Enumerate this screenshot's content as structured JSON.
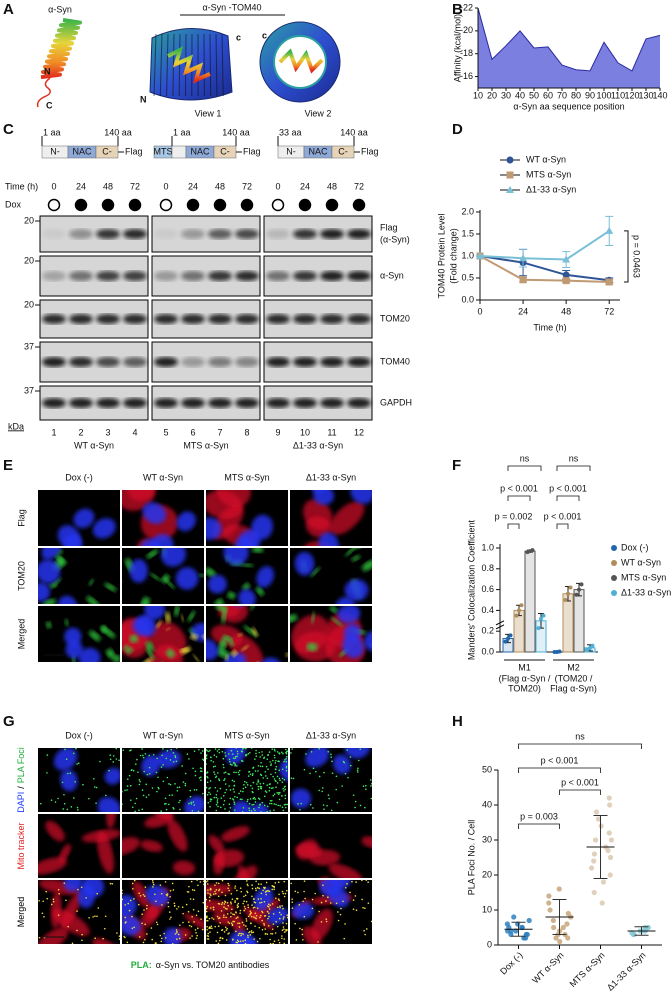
{
  "panel_letters": [
    "A",
    "B",
    "C",
    "D",
    "E",
    "F",
    "G",
    "H"
  ],
  "panel_a": {
    "monomer_title": "α-Syn",
    "complex_title": "α-Syn -TOM40",
    "monomer_n": "N",
    "monomer_c": "C",
    "view1_c": "c",
    "view1_n": "N",
    "view1": "View 1",
    "view2_c": "c",
    "view2": "View 2"
  },
  "panel_c": {
    "constructs": [
      {
        "start": "1 aa",
        "end": "140 aa",
        "domains": [
          "N-",
          "NAC",
          "C-"
        ],
        "tag": "Flag"
      },
      {
        "start": "1 aa",
        "end": "140 aa",
        "domains": [
          "MTS",
          "NAC",
          "C-"
        ],
        "tag": "Flag"
      },
      {
        "start": "33 aa",
        "end": "140 aa",
        "domains": [
          "N-",
          "NAC",
          "C-"
        ],
        "tag": "Flag"
      }
    ],
    "time_label": "Time (h)",
    "times": [
      "0",
      "24",
      "48",
      "72"
    ],
    "dox_label": "Dox",
    "dox": [
      false,
      true,
      true,
      true
    ],
    "blots": [
      {
        "label": "Flag",
        "sublabel": "(α-Syn)",
        "mw": "20"
      },
      {
        "label": "α-Syn",
        "mw": "20"
      },
      {
        "label": "TOM20",
        "mw": "20"
      },
      {
        "label": "TOM40",
        "mw": "37"
      },
      {
        "label": "GAPDH",
        "mw": "37"
      }
    ],
    "mw_unit": "kDa",
    "lanes": [
      "1",
      "2",
      "3",
      "4",
      "5",
      "6",
      "7",
      "8",
      "9",
      "10",
      "11",
      "12"
    ],
    "groups": [
      "WT α-Syn",
      "MTS α-Syn",
      "Δ1-33 α-Syn"
    ]
  },
  "panel_e": {
    "columns": [
      "Dox (-)",
      "WT α-Syn",
      "MTS α-Syn",
      "Δ1-33 α-Syn"
    ],
    "rows": [
      {
        "label": "Flag",
        "color": "#e02020"
      },
      {
        "label": "TOM20",
        "color": "#1fae3a"
      },
      {
        "label": "Merged",
        "color": "#000000"
      }
    ]
  },
  "panel_g": {
    "columns": [
      "Dox (-)",
      "WT α-Syn",
      "MTS α-Syn",
      "Δ1-33 α-Syn"
    ],
    "rows": [
      {
        "parts": [
          "DAPI",
          "/",
          "PLA Foci"
        ],
        "colors": [
          "#1a3cff",
          "#000000",
          "#1fae3a"
        ]
      },
      {
        "parts": [
          "Mito tracker"
        ],
        "colors": [
          "#e02020"
        ]
      },
      {
        "parts": [
          "Merged"
        ],
        "colors": [
          "#000000"
        ]
      }
    ],
    "footer_key": "PLA:",
    "footer_key_color": "#1fae3a",
    "footer_text": "α-Syn vs. TOM20 antibodies"
  },
  "chart_data": [
    {
      "type": "area",
      "y_label": "Affinity (kcal/mol)",
      "x_label": "α-Syn aa sequence position",
      "x": [
        10,
        20,
        30,
        40,
        50,
        60,
        70,
        80,
        90,
        100,
        110,
        120,
        130,
        140
      ],
      "values": [
        -22,
        -17.5,
        -18.7,
        -20,
        -18.5,
        -18.6,
        -17,
        -16.6,
        -16.5,
        -19,
        -17.2,
        -16.5,
        -19.3,
        -19.6
      ],
      "color": "#7b7fe0",
      "line_color": "#2a2aa0",
      "xlim": [
        10,
        140
      ],
      "xticks": [
        10,
        20,
        30,
        40,
        50,
        60,
        70,
        80,
        90,
        100,
        110,
        120,
        130,
        140
      ],
      "ylim": [
        -15,
        -22
      ],
      "yticks": [
        -22,
        -20,
        -18,
        -16
      ]
    },
    {
      "type": "line",
      "x_label": "Time (h)",
      "y_label": [
        "TOM40 Protein Level",
        "(Fold change)"
      ],
      "x": [
        0,
        24,
        48,
        72
      ],
      "series": [
        {
          "name": "WT α-Syn",
          "color": "#2f5597",
          "marker": "circle",
          "values": [
            1.0,
            0.85,
            0.57,
            0.45
          ],
          "errors": [
            0,
            0.3,
            0.1,
            0.05
          ]
        },
        {
          "name": "MTS α-Syn",
          "color": "#c09a72",
          "marker": "square",
          "values": [
            1.0,
            0.46,
            0.44,
            0.41
          ],
          "errors": [
            0,
            0.05,
            0.04,
            0.05
          ]
        },
        {
          "name": "Δ1-33 α-Syn",
          "color": "#79bfd6",
          "marker": "triangle",
          "values": [
            1.0,
            0.95,
            0.92,
            1.57
          ],
          "errors": [
            0,
            0.2,
            0.18,
            0.33
          ]
        }
      ],
      "xlim": [
        0,
        78
      ],
      "xticks": [
        0,
        24,
        48,
        72
      ],
      "ylim": [
        0,
        2
      ],
      "yticks": [
        {
          "value": 0,
          "label": "0.0"
        },
        0.5,
        {
          "value": 1,
          "label": "1.0"
        },
        1.5,
        {
          "value": 2,
          "label": "2.0"
        }
      ],
      "annotation": "p = 0.0463"
    },
    {
      "type": "bar",
      "y_label": "Manders' Colocalization Coefficient",
      "categories": [
        "M1",
        "M2"
      ],
      "category_notes": [
        [
          "(Flag α-Syn /",
          "TOM20)"
        ],
        [
          "(TOM20 /",
          "Flag α-Syn)"
        ]
      ],
      "series": [
        {
          "name": "Dox (-)",
          "color": "#2166ac",
          "bar_color": "#dbe6f3",
          "values": [
            0.13,
            0.0
          ],
          "errors": [
            0.04,
            0.005
          ],
          "points": [
            [
              0.1,
              0.13,
              0.16
            ],
            [
              0,
              0,
              0.005
            ]
          ]
        },
        {
          "name": "WT α-Syn",
          "color": "#b08c5a",
          "bar_color": "#eadfcf",
          "values": [
            0.4,
            0.56
          ],
          "errors": [
            0.05,
            0.07
          ],
          "points": [
            [
              0.35,
              0.4,
              0.45
            ],
            [
              0.5,
              0.56,
              0.62
            ]
          ]
        },
        {
          "name": "MTS α-Syn",
          "color": "#555555",
          "bar_color": "#e4e4e4",
          "values": [
            0.97,
            0.6
          ],
          "errors": [
            0.01,
            0.06
          ],
          "points": [
            [
              0.96,
              0.97,
              0.98
            ],
            [
              0.55,
              0.6,
              0.65
            ]
          ]
        },
        {
          "name": "Δ1-33 α-Syn",
          "color": "#4fb0d4",
          "bar_color": "#dff0f6",
          "values": [
            0.3,
            0.04
          ],
          "errors": [
            0.07,
            0.03
          ],
          "points": [
            [
              0.23,
              0.32,
              0.35
            ],
            [
              0.02,
              0.04,
              0.06
            ]
          ]
        }
      ],
      "ylim": [
        0,
        1
      ],
      "yticks": [
        {
          "value": 0,
          "label": "0.0"
        },
        0.2,
        0.4,
        0.6,
        0.8,
        {
          "value": 1,
          "label": "1.0"
        }
      ],
      "annotations": [
        "ns",
        "p < 0.001",
        "p = 0.002",
        "ns",
        "p < 0.001",
        "p < 0.001"
      ]
    },
    {
      "type": "strip",
      "y_label": "PLA Foci No. / Cell",
      "categories": [
        "Dox (-)",
        "WT α-Syn",
        "MTS α-Syn",
        "Δ1-33 α-Syn"
      ],
      "colors": [
        "#2e7fc0",
        "#c9a47a",
        "#d9c9b0",
        "#86c9d8"
      ],
      "points": [
        [
          2,
          3,
          3,
          4,
          4,
          4,
          5,
          5,
          5,
          6,
          6,
          7,
          2,
          3,
          8
        ],
        [
          1,
          2,
          3,
          4,
          5,
          6,
          7,
          8,
          9,
          10,
          12,
          14,
          16,
          3,
          5,
          2
        ],
        [
          12,
          15,
          18,
          20,
          22,
          24,
          26,
          28,
          30,
          32,
          34,
          36,
          38,
          40,
          42,
          25,
          30,
          27
        ],
        [
          3,
          3.5,
          4,
          4,
          4.5,
          5,
          3,
          4,
          5,
          4.5
        ]
      ],
      "means": [
        4.5,
        8,
        28,
        4
      ],
      "sds": [
        2,
        5,
        9,
        1.2
      ],
      "ylim": [
        0,
        50
      ],
      "yticks": [
        0,
        10,
        20,
        30,
        40,
        50
      ],
      "annotations": [
        "ns",
        "p < 0.001",
        "p < 0.001",
        "p = 0.003"
      ]
    }
  ]
}
